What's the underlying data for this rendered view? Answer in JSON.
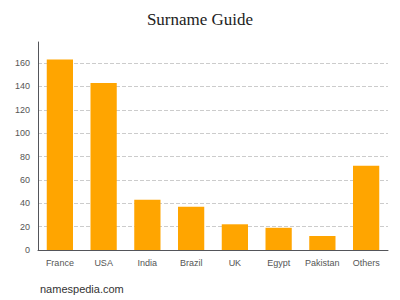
{
  "chart_data": {
    "type": "bar",
    "title": "Surname Guide",
    "categories": [
      "France",
      "USA",
      "India",
      "Brazil",
      "UK",
      "Egypt",
      "Pakistan",
      "Others"
    ],
    "values": [
      163,
      143,
      43,
      37,
      22,
      19,
      12,
      72
    ],
    "color": "#FFA500",
    "ylim": [
      0,
      178
    ],
    "yticks": [
      0,
      20,
      40,
      60,
      80,
      100,
      120,
      140,
      160
    ],
    "grid": true,
    "annotations": [
      "namespedia.com"
    ]
  }
}
